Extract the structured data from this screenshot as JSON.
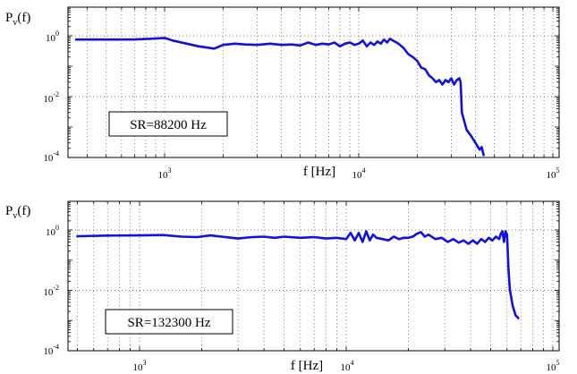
{
  "chart_data": [
    {
      "type": "line",
      "ylabel": "P",
      "ylabel_sub": "v",
      "ylabel_suffix": "(f)",
      "xlabel": "f [Hz]",
      "annotation": "SR=88200 Hz",
      "xscale": "log",
      "yscale": "log",
      "xlim": [
        320,
        100000
      ],
      "ylim": [
        0.0001,
        3
      ],
      "grid": true,
      "xticks": [
        {
          "base": "10",
          "exp": "3",
          "value": 1000
        },
        {
          "base": "10",
          "exp": "4",
          "value": 10000
        },
        {
          "base": "10",
          "exp": "5",
          "value": 100000
        }
      ],
      "yticks": [
        {
          "base": "10",
          "exp": "0",
          "value": 1
        },
        {
          "base": "10",
          "exp": "-2",
          "value": 0.01
        },
        {
          "base": "10",
          "exp": "-4",
          "value": 0.0001
        }
      ],
      "series": [
        {
          "color": "#1010e0",
          "x": [
            350,
            500,
            700,
            850,
            1000,
            1100,
            1300,
            1500,
            1800,
            2000,
            2300,
            2600,
            3000,
            3500,
            4000,
            4500,
            5000,
            5500,
            6000,
            6500,
            7000,
            7500,
            8000,
            8500,
            9000,
            9500,
            10000,
            10500,
            11000,
            11500,
            12000,
            12500,
            13000,
            13500,
            14000,
            14500,
            15000,
            16000,
            17000,
            18000,
            19000,
            20000,
            21000,
            22000,
            23000,
            24000,
            25000,
            26000,
            27000,
            28000,
            29000,
            30000,
            31000,
            32000,
            33000,
            33500,
            34000,
            35000,
            36000,
            38000,
            40000,
            42000,
            43000,
            44000
          ],
          "y": [
            0.75,
            0.75,
            0.76,
            0.8,
            0.85,
            0.7,
            0.55,
            0.45,
            0.38,
            0.5,
            0.55,
            0.52,
            0.5,
            0.55,
            0.5,
            0.52,
            0.48,
            0.6,
            0.5,
            0.55,
            0.52,
            0.6,
            0.45,
            0.55,
            0.6,
            0.5,
            0.55,
            0.7,
            0.45,
            0.6,
            0.5,
            0.65,
            0.55,
            0.75,
            0.6,
            0.8,
            0.7,
            0.55,
            0.4,
            0.25,
            0.2,
            0.15,
            0.09,
            0.08,
            0.05,
            0.04,
            0.03,
            0.035,
            0.025,
            0.035,
            0.03,
            0.04,
            0.025,
            0.035,
            0.04,
            0.03,
            0.003,
            0.0015,
            0.0008,
            0.0005,
            0.0003,
            0.00018,
            0.00022,
            0.00012
          ]
        }
      ]
    },
    {
      "type": "line",
      "ylabel": "P",
      "ylabel_sub": "v",
      "ylabel_suffix": "(f)",
      "xlabel": "f [Hz]",
      "annotation": "SR=132300 Hz",
      "xscale": "log",
      "yscale": "log",
      "xlim": [
        320,
        100000
      ],
      "ylim": [
        0.0001,
        3
      ],
      "grid": true,
      "xticks": [
        {
          "base": "10",
          "exp": "3",
          "value": 1000
        },
        {
          "base": "10",
          "exp": "4",
          "value": 10000
        },
        {
          "base": "10",
          "exp": "5",
          "value": 100000
        }
      ],
      "yticks": [
        {
          "base": "10",
          "exp": "0",
          "value": 1
        },
        {
          "base": "10",
          "exp": "-2",
          "value": 0.01
        },
        {
          "base": "10",
          "exp": "-4",
          "value": 0.0001
        }
      ],
      "series": [
        {
          "color": "#1010e0",
          "x": [
            500,
            700,
            1000,
            1300,
            1600,
            1900,
            2200,
            2500,
            3000,
            3500,
            4000,
            4500,
            5000,
            6000,
            7000,
            8000,
            9000,
            10000,
            10500,
            11000,
            11500,
            12000,
            12500,
            13000,
            13500,
            14000,
            15000,
            16000,
            17000,
            18000,
            19000,
            20000,
            21000,
            22000,
            23000,
            24000,
            25000,
            27000,
            29000,
            31000,
            33000,
            35000,
            37000,
            39000,
            41000,
            43000,
            45000,
            47000,
            49000,
            51000,
            53000,
            55000,
            56000,
            57000,
            58000,
            59000,
            60000,
            61000,
            62000,
            64000,
            66000,
            68000
          ],
          "y": [
            0.62,
            0.65,
            0.66,
            0.68,
            0.6,
            0.58,
            0.66,
            0.6,
            0.52,
            0.58,
            0.6,
            0.55,
            0.6,
            0.55,
            0.58,
            0.52,
            0.55,
            0.5,
            0.8,
            0.45,
            0.8,
            0.4,
            0.9,
            0.45,
            0.7,
            0.55,
            0.5,
            0.45,
            0.6,
            0.5,
            0.55,
            0.55,
            0.6,
            0.75,
            0.85,
            0.6,
            0.7,
            0.5,
            0.55,
            0.4,
            0.5,
            0.38,
            0.45,
            0.35,
            0.45,
            0.35,
            0.5,
            0.4,
            0.55,
            0.45,
            0.6,
            0.5,
            0.75,
            0.9,
            0.4,
            0.9,
            0.7,
            0.05,
            0.01,
            0.003,
            0.0015,
            0.0012
          ]
        }
      ]
    }
  ]
}
